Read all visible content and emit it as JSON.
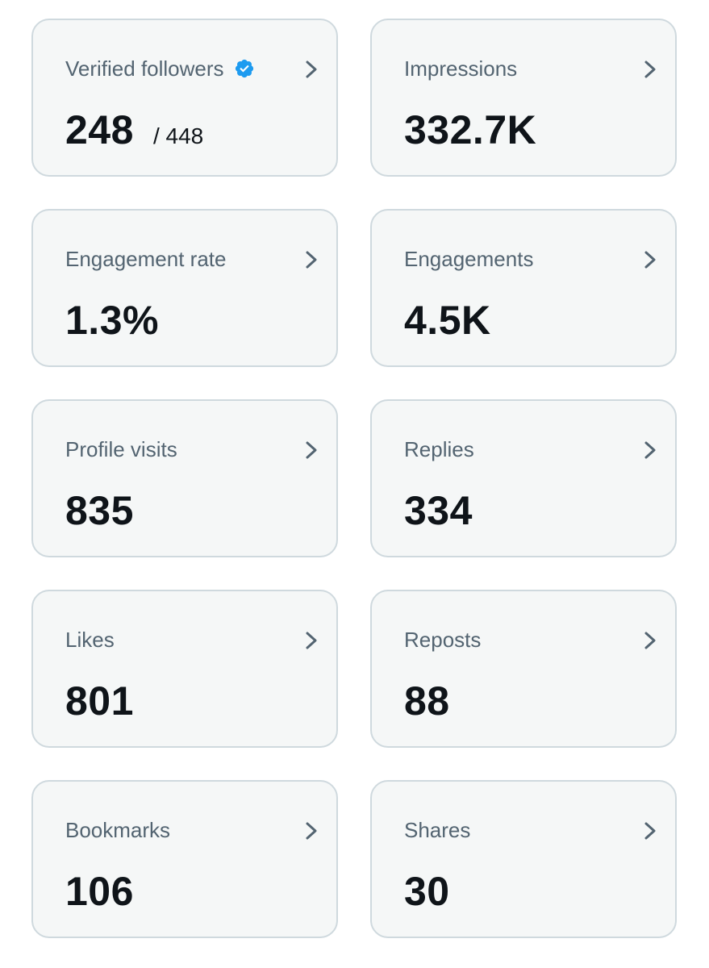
{
  "metrics": [
    {
      "label": "Verified followers",
      "value": "248",
      "sub": "/ 448",
      "verified_badge": true,
      "badge_color": "#1d9bf0"
    },
    {
      "label": "Impressions",
      "value": "332.7K"
    },
    {
      "label": "Engagement rate",
      "value": "1.3%"
    },
    {
      "label": "Engagements",
      "value": "4.5K"
    },
    {
      "label": "Profile visits",
      "value": "835"
    },
    {
      "label": "Replies",
      "value": "334"
    },
    {
      "label": "Likes",
      "value": "801"
    },
    {
      "label": "Reposts",
      "value": "88"
    },
    {
      "label": "Bookmarks",
      "value": "106"
    },
    {
      "label": "Shares",
      "value": "30"
    }
  ],
  "icons": {
    "chevron": "chevron-right-icon",
    "verified": "verified-badge-icon"
  },
  "colors": {
    "card_background": "#f5f7f7",
    "card_border": "#cfd9de",
    "label_text": "#536471",
    "value_text": "#0f1419",
    "chevron": "#536471",
    "verified_badge": "#1d9bf0"
  }
}
